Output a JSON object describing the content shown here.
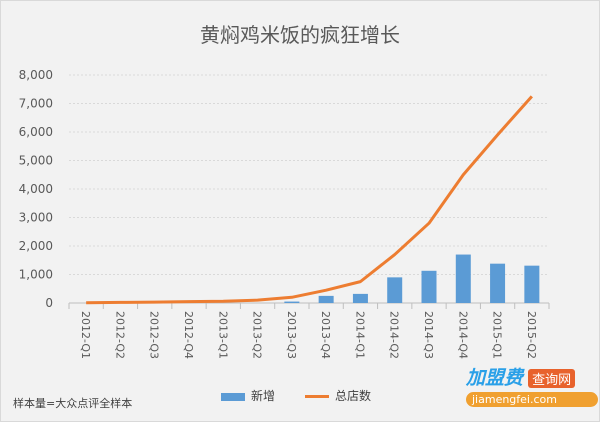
{
  "chart_data": {
    "type": "bar+line",
    "title": "黄焖鸡米饭的疯狂增长",
    "categories": [
      "2012-Q1",
      "2012-Q2",
      "2012-Q3",
      "2012-Q4",
      "2013-Q1",
      "2013-Q2",
      "2013-Q3",
      "2013-Q4",
      "2014-Q1",
      "2014-Q2",
      "2014-Q3",
      "2014-Q4",
      "2015-Q1",
      "2015-Q2"
    ],
    "series": [
      {
        "name": "新增",
        "type": "bar",
        "color": "#5b9bd5",
        "values": [
          0,
          0,
          0,
          0,
          0,
          0,
          50,
          250,
          320,
          900,
          1130,
          1700,
          1380,
          1310
        ]
      },
      {
        "name": "总店数",
        "type": "line",
        "color": "#ed7d31",
        "values": [
          10,
          20,
          30,
          50,
          60,
          100,
          200,
          450,
          750,
          1700,
          2800,
          4500,
          5900,
          7250
        ]
      }
    ],
    "ylim": [
      0,
      8000
    ],
    "yticks": [
      "0",
      "1,000",
      "2,000",
      "3,000",
      "4,000",
      "5,000",
      "6,000",
      "7,000",
      "8,000"
    ],
    "legend": "bottom",
    "note": "样本量=大众点评全样本"
  },
  "watermark": {
    "brand": "加盟费",
    "tag": "查询网",
    "url": "jiamengfei.com"
  }
}
